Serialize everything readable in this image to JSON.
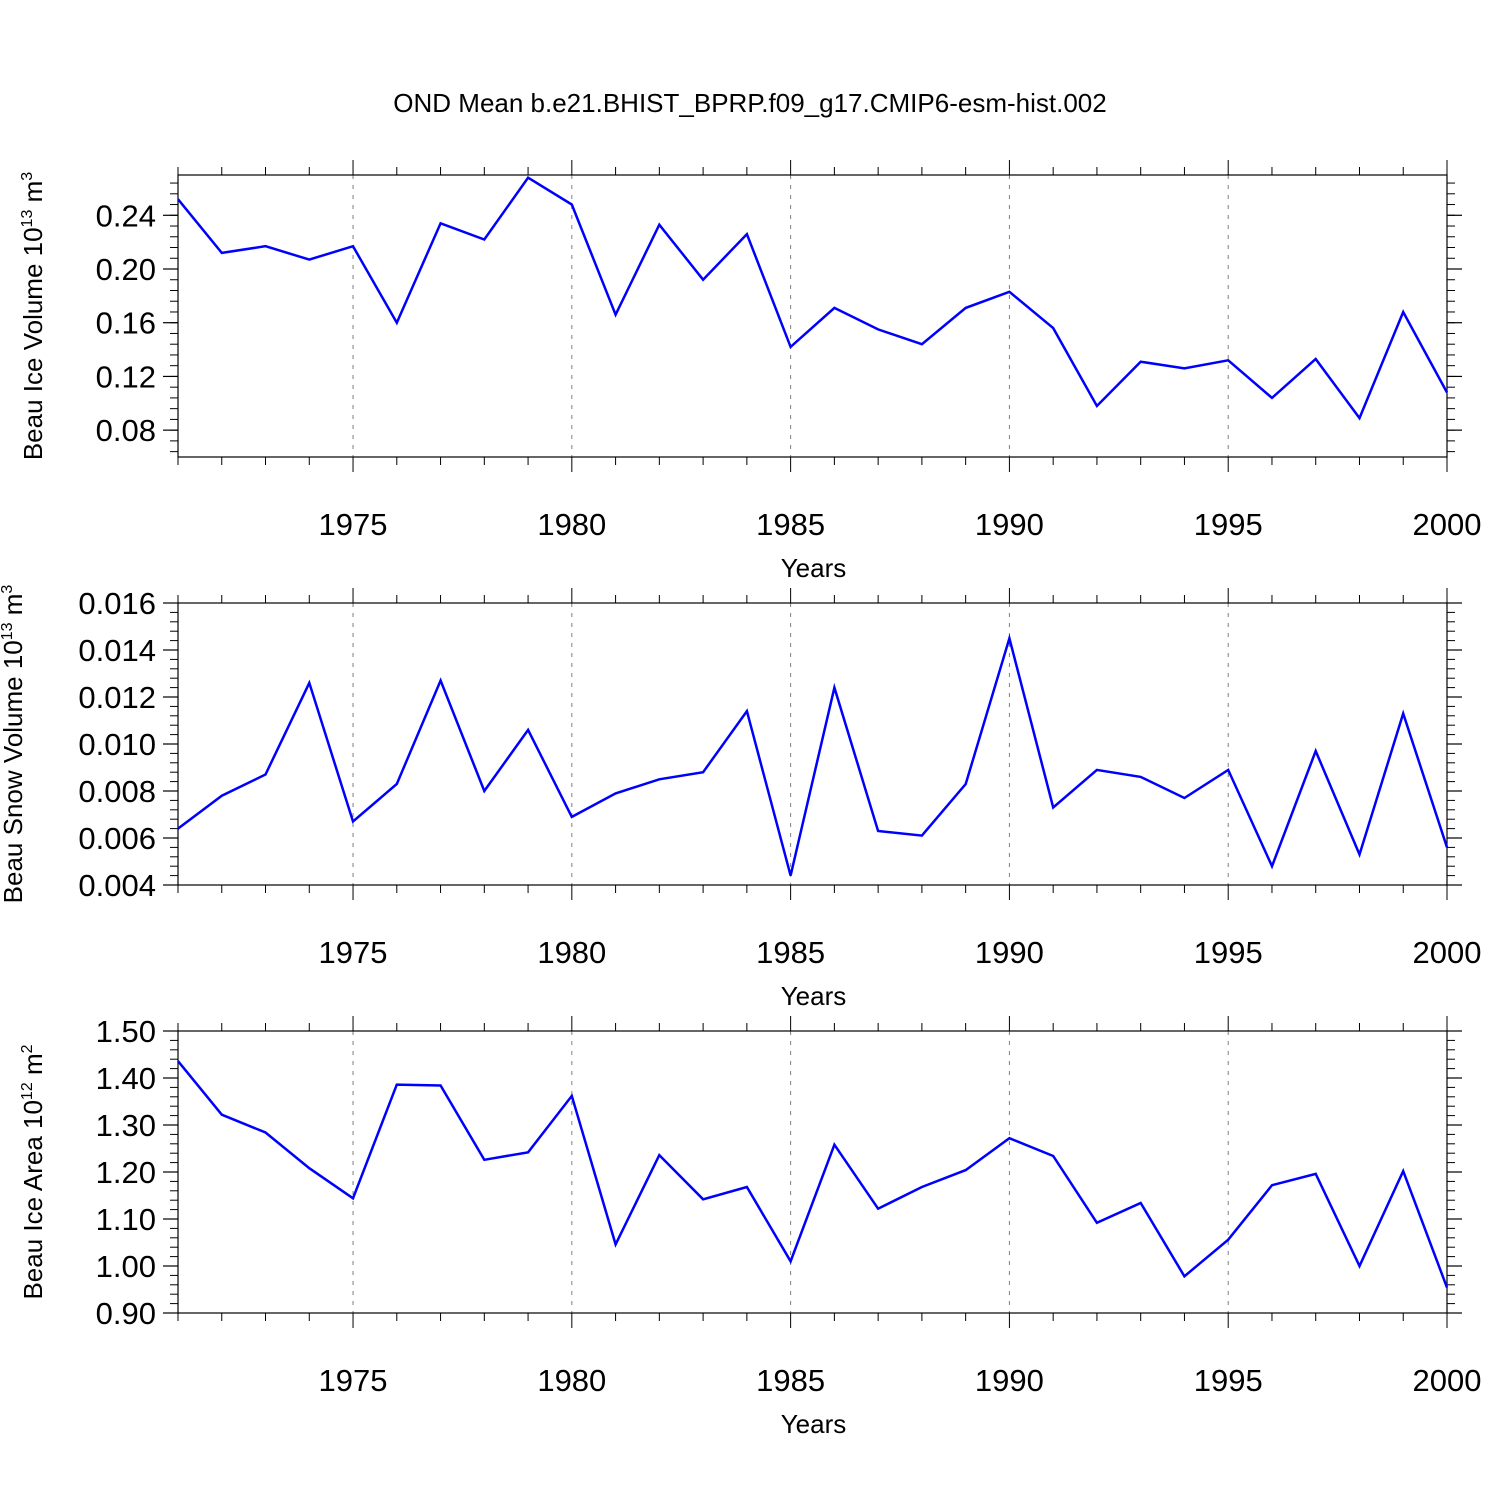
{
  "title": "OND Mean b.e21.BHIST_BPRP.f09_g17.CMIP6-esm-hist.002",
  "colors": {
    "line": "#0000ff",
    "axis": "#000000",
    "grid": "#7f7f7f",
    "background": "#ffffff"
  },
  "chart_data": [
    {
      "type": "line",
      "ylabel": "Beau Ice Volume 10",
      "ylabel_exp": "13",
      "ylabel_unit": " m",
      "ylabel_unit_exp": "3",
      "xlabel": "Years",
      "xlim": [
        1971,
        2000
      ],
      "ylim": [
        0.06,
        0.27
      ],
      "yticks": [
        0.08,
        0.12,
        0.16,
        0.2,
        0.24
      ],
      "ytick_labels": [
        "0.08",
        "0.12",
        "0.16",
        "0.20",
        "0.24"
      ],
      "xticks": [
        1975,
        1980,
        1985,
        1990,
        1995,
        2000
      ],
      "xtick_labels": [
        "1975",
        "1980",
        "1985",
        "1990",
        "1995",
        "2000"
      ],
      "grid": "vertical dashed at major x ticks",
      "x": [
        1971,
        1972,
        1973,
        1974,
        1975,
        1976,
        1977,
        1978,
        1979,
        1980,
        1981,
        1982,
        1983,
        1984,
        1985,
        1986,
        1987,
        1988,
        1989,
        1990,
        1991,
        1992,
        1993,
        1994,
        1995,
        1996,
        1997,
        1998,
        1999,
        2000
      ],
      "values": [
        0.252,
        0.212,
        0.217,
        0.207,
        0.217,
        0.16,
        0.234,
        0.222,
        0.268,
        0.248,
        0.166,
        0.233,
        0.192,
        0.226,
        0.142,
        0.171,
        0.155,
        0.144,
        0.171,
        0.183,
        0.156,
        0.098,
        0.131,
        0.126,
        0.132,
        0.104,
        0.133,
        0.089,
        0.168,
        0.108
      ]
    },
    {
      "type": "line",
      "ylabel": "Beau Snow Volume 10",
      "ylabel_exp": "13",
      "ylabel_unit": " m",
      "ylabel_unit_exp": "3",
      "xlabel": "Years",
      "xlim": [
        1971,
        2000
      ],
      "ylim": [
        0.004,
        0.016
      ],
      "yticks": [
        0.004,
        0.006,
        0.008,
        0.01,
        0.012,
        0.014,
        0.016
      ],
      "ytick_labels": [
        "0.004",
        "0.006",
        "0.008",
        "0.010",
        "0.012",
        "0.014",
        "0.016"
      ],
      "xticks": [
        1975,
        1980,
        1985,
        1990,
        1995,
        2000
      ],
      "xtick_labels": [
        "1975",
        "1980",
        "1985",
        "1990",
        "1995",
        "2000"
      ],
      "grid": "vertical dashed at major x ticks",
      "x": [
        1971,
        1972,
        1973,
        1974,
        1975,
        1976,
        1977,
        1978,
        1979,
        1980,
        1981,
        1982,
        1983,
        1984,
        1985,
        1986,
        1987,
        1988,
        1989,
        1990,
        1991,
        1992,
        1993,
        1994,
        1995,
        1996,
        1997,
        1998,
        1999,
        2000
      ],
      "values": [
        0.0064,
        0.0078,
        0.0087,
        0.0126,
        0.0067,
        0.0083,
        0.0127,
        0.008,
        0.0106,
        0.0069,
        0.0079,
        0.0085,
        0.0088,
        0.0114,
        0.0044,
        0.0124,
        0.0063,
        0.0061,
        0.0083,
        0.0145,
        0.0073,
        0.0089,
        0.0086,
        0.0077,
        0.0089,
        0.0048,
        0.0097,
        0.0053,
        0.0113,
        0.0056
      ]
    },
    {
      "type": "line",
      "ylabel": "Beau Ice Area 10",
      "ylabel_exp": "12",
      "ylabel_unit": " m",
      "ylabel_unit_exp": "2",
      "xlabel": "Years",
      "xlim": [
        1971,
        2000
      ],
      "ylim": [
        0.9,
        1.5
      ],
      "yticks": [
        0.9,
        1.0,
        1.1,
        1.2,
        1.3,
        1.4,
        1.5
      ],
      "ytick_labels": [
        "0.90",
        "1.00",
        "1.10",
        "1.20",
        "1.30",
        "1.40",
        "1.50"
      ],
      "xticks": [
        1975,
        1980,
        1985,
        1990,
        1995,
        2000
      ],
      "xtick_labels": [
        "1975",
        "1980",
        "1985",
        "1990",
        "1995",
        "2000"
      ],
      "grid": "vertical dashed at major x ticks",
      "x": [
        1971,
        1972,
        1973,
        1974,
        1975,
        1976,
        1977,
        1978,
        1979,
        1980,
        1981,
        1982,
        1983,
        1984,
        1985,
        1986,
        1987,
        1988,
        1989,
        1990,
        1991,
        1992,
        1993,
        1994,
        1995,
        1996,
        1997,
        1998,
        1999,
        2000
      ],
      "values": [
        1.436,
        1.322,
        1.284,
        1.208,
        1.144,
        1.386,
        1.384,
        1.226,
        1.242,
        1.362,
        1.046,
        1.236,
        1.142,
        1.168,
        1.01,
        1.258,
        1.122,
        1.168,
        1.204,
        1.272,
        1.234,
        1.092,
        1.134,
        0.978,
        1.056,
        1.172,
        1.196,
        1.0,
        1.202,
        0.954
      ]
    }
  ]
}
